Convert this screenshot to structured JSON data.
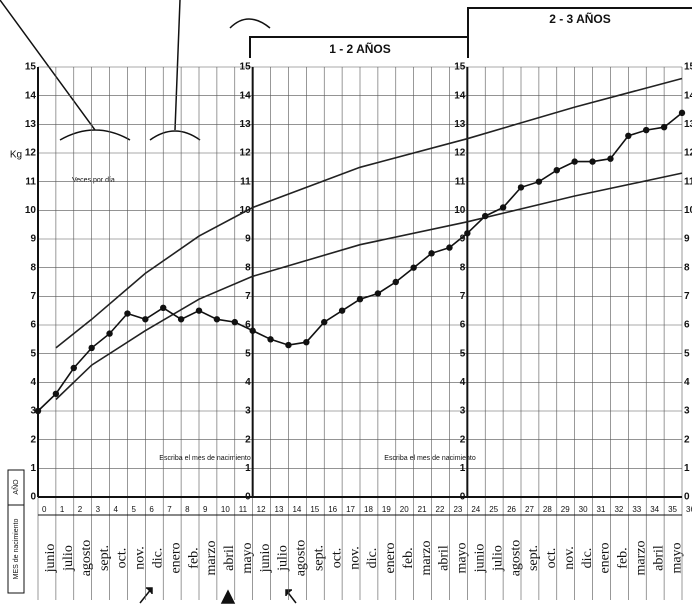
{
  "chart_data": {
    "type": "line",
    "y_label": "Kg",
    "annotations": [
      "1 - 2 AÑOS",
      "2 - 3 AÑOS",
      "Veces por día",
      "Escriba el mes de nacimiento",
      "Escriba el mes de nacimiento"
    ],
    "row_labels": {
      "year": "AÑO",
      "month": "MES de nacimiento"
    },
    "categories": [
      "junio",
      "julio",
      "agosto",
      "sept.",
      "oct.",
      "nov.",
      "dic.",
      "enero",
      "feb.",
      "marzo",
      "abril",
      "mayo",
      "junio",
      "julio",
      "agosto",
      "sept.",
      "oct.",
      "nov.",
      "dic.",
      "enero",
      "feb.",
      "marzo",
      "abril",
      "mayo",
      "junio",
      "julio",
      "agosto",
      "sept.",
      "oct.",
      "nov.",
      "dic.",
      "enero",
      "feb.",
      "marzo",
      "abril",
      "mayo"
    ],
    "xlim": [
      0,
      36
    ],
    "xticks": [
      0,
      1,
      2,
      3,
      4,
      5,
      6,
      7,
      8,
      9,
      10,
      11,
      12,
      13,
      14,
      15,
      16,
      17,
      18,
      19,
      20,
      21,
      22,
      23,
      24,
      25,
      26,
      27,
      28,
      29,
      30,
      31,
      32,
      33,
      34,
      35,
      36
    ],
    "ylim": [
      0,
      15
    ],
    "yticks": [
      0,
      1,
      2,
      3,
      4,
      5,
      6,
      7,
      8,
      9,
      10,
      11,
      12,
      13,
      14,
      15
    ],
    "grid": true,
    "series": [
      {
        "color": "#222222",
        "markers": false,
        "x": [
          1,
          3,
          6,
          9,
          12,
          18,
          24,
          30,
          36
        ],
        "values": [
          5.2,
          6.2,
          7.8,
          9.1,
          10.1,
          11.5,
          12.5,
          13.6,
          14.6
        ]
      },
      {
        "color": "#222222",
        "markers": false,
        "x": [
          1,
          3,
          6,
          9,
          12,
          18,
          24,
          30,
          36
        ],
        "values": [
          3.4,
          4.6,
          5.8,
          6.9,
          7.7,
          8.8,
          9.6,
          10.5,
          11.3
        ]
      },
      {
        "color": "#111111",
        "markers": true,
        "x": [
          0,
          1,
          2,
          3,
          4,
          5,
          6,
          7,
          8,
          9,
          10,
          11,
          12,
          13,
          14,
          15,
          16,
          17,
          18,
          19,
          20,
          21,
          22,
          23,
          24,
          25,
          26,
          27,
          28,
          29,
          30,
          31,
          32,
          33,
          34,
          35,
          36
        ],
        "values": [
          3.0,
          3.6,
          4.5,
          5.2,
          5.7,
          6.4,
          6.2,
          6.6,
          6.2,
          6.5,
          6.2,
          6.1,
          5.8,
          5.5,
          5.3,
          5.4,
          6.1,
          6.5,
          6.9,
          7.1,
          7.5,
          8.0,
          8.5,
          8.7,
          9.2,
          9.8,
          10.1,
          10.8,
          11.0,
          11.4,
          11.7,
          11.7,
          11.8,
          12.6,
          12.8,
          12.9,
          13.4
        ]
      }
    ]
  }
}
